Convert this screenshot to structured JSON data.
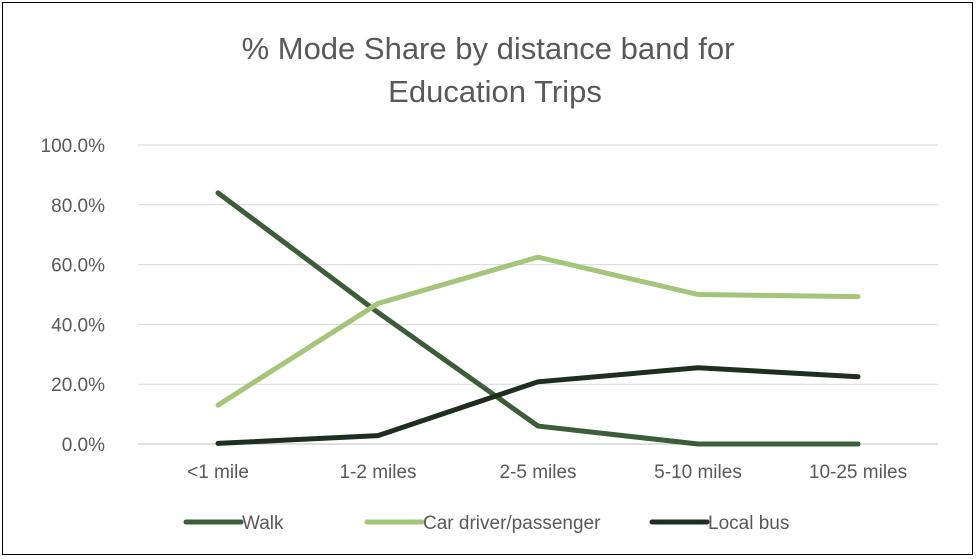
{
  "chart_data": {
    "type": "line",
    "title_lines": [
      "% Mode Share by distance band for",
      "Education Trips"
    ],
    "categories": [
      "<1 mile",
      "1-2 miles",
      "2-5 miles",
      "5-10 miles",
      "10-25 miles"
    ],
    "y_tick_labels": [
      "0.0%",
      "20.0%",
      "40.0%",
      "60.0%",
      "80.0%",
      "100.0%"
    ],
    "ylim": [
      0,
      100
    ],
    "grid": true,
    "legend_position": "bottom",
    "series": [
      {
        "name": "Walk",
        "color": "#3d5c3a",
        "values": [
          84.0,
          44.0,
          6.0,
          0.0,
          0.0
        ]
      },
      {
        "name": "Car driver/passenger",
        "color": "#a6c47a",
        "values": [
          13.0,
          47.0,
          62.5,
          50.0,
          49.3
        ]
      },
      {
        "name": "Local bus",
        "color": "#1f2e1e",
        "values": [
          0.2,
          2.8,
          20.8,
          25.5,
          22.5
        ]
      }
    ]
  }
}
